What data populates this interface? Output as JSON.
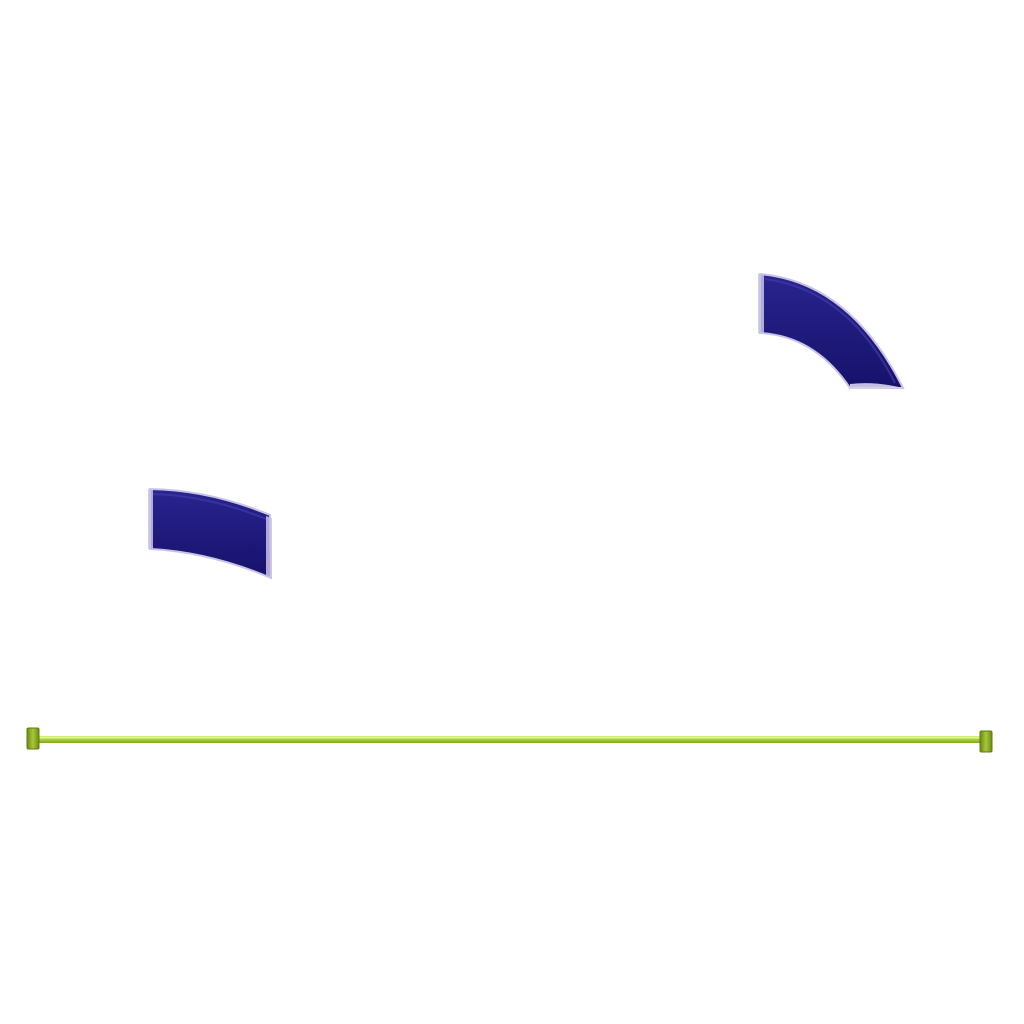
{
  "scene": {
    "background": "#ffffff",
    "arc_colors": {
      "body": "#1f1a7a",
      "highlight": "#3a35a6",
      "edge": "#c9c4e6"
    },
    "rod_colors": {
      "main": "#9acd32",
      "highlight": "#c8f060",
      "cap": "#8fae1f",
      "cap_dark": "#6b8a12"
    }
  }
}
